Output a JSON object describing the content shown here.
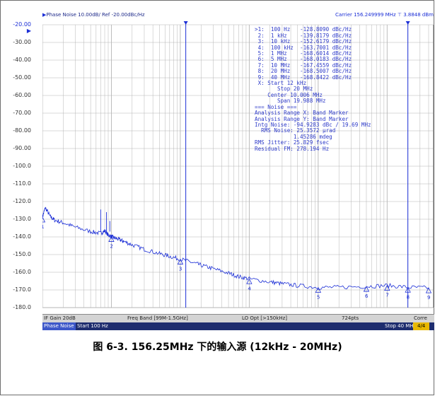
{
  "header": {
    "title": "Phase Noise 10.00dB/ Ref -20.00dBc/Hz",
    "carrier": "Carrier 156.249999 MHz",
    "carrier_level": "3.8848 dBm"
  },
  "y_axis": {
    "labels": [
      "-20.00",
      "-30.00",
      "-40.00",
      "-50.00",
      "-60.00",
      "-70.00",
      "-80.00",
      "-90.00",
      "-100.0",
      "-110.0",
      "-120.0",
      "-130.0",
      "-140.0",
      "-150.0",
      "-160.0",
      "-170.0",
      "-180.0"
    ]
  },
  "markers": {
    "list": [
      ">1:  100 Hz   -128.8090 dBc/Hz",
      " 2:  1 kHz    -139.8179 dBc/Hz",
      " 3:  10 kHz   -152.6179 dBc/Hz",
      " 4:  100 kHz  -163.7001 dBc/Hz",
      " 5:  1 MHz    -168.6014 dBc/Hz",
      " 6:  5 MHz    -168.0183 dBc/Hz",
      " 7:  10 MHz   -167.4559 dBc/Hz",
      " 8:  20 MHz   -168.5007 dBc/Hz",
      " 9:  40 MHz   -168.8422 dBc/Hz"
    ],
    "x_start": " X: Start 12 kHz",
    "x_stop": "       Stop 20 MHz",
    "center": "    Center 10.006 MHz",
    "span": "       Span 19.988 MHz",
    "noise_header": "=== Noise ===",
    "range_x": "Analysis Range X: Band Marker",
    "range_y": "Analysis Range Y: Band Marker",
    "intg_noise": "Intg Noise: -94.9283 dBc / 19.69 MHz",
    "rms_noise": "  RMS Noise: 25.3572 µrad",
    "rms_mdeg": "            1.45286 mdeg",
    "rms_jitter": "RMS Jitter: 25.829 fsec",
    "residual_fm": "Residual FM: 278.194 Hz"
  },
  "status_bar": {
    "if_gain": "IF Gain 20dB",
    "freq_band": "Freq Band [99M-1.5GHz]",
    "lo_opt": "LO Opt [>150kHz]",
    "points": "724pts",
    "corr": "Corre 10"
  },
  "bottom_bar": {
    "mode": "Phase Noise",
    "start": "Start 100 Hz",
    "stop": "Stop 40 MHz",
    "page": "4/4"
  },
  "marker_labels": [
    "1",
    "2",
    "3",
    "4",
    "5",
    "6",
    "7",
    "8",
    "9"
  ],
  "caption": "图 6-3. 156.25MHz 下的输入源 (12kHz - 20MHz)",
  "chart_data": {
    "type": "line",
    "title": "Phase Noise 10.00dB/ Ref -20.00dBc/Hz",
    "xscale": "log",
    "x_range_hz": [
      100,
      40000000
    ],
    "ylim": [
      -180,
      -20
    ],
    "y_unit": "dBc/Hz",
    "grid": true,
    "band_markers_hz": [
      12000,
      20000000
    ],
    "series": [
      {
        "x": [
          100,
          110,
          130,
          150,
          200,
          300,
          500,
          700,
          800,
          900,
          1000,
          1100,
          1300,
          1500,
          2000,
          3000,
          5000,
          7000,
          10000,
          15000,
          20000,
          30000,
          50000,
          70000,
          100000,
          200000,
          300000,
          500000,
          1000000,
          2000000,
          5000000,
          10000000,
          20000000,
          40000000
        ],
        "y": [
          -128.8,
          -123.5,
          -128.5,
          -130.5,
          -132.0,
          -134.5,
          -137.0,
          -138.0,
          -136.5,
          -139.0,
          -139.8,
          -140.5,
          -141.5,
          -142.5,
          -144.5,
          -147.0,
          -149.5,
          -151.0,
          -152.6,
          -154.5,
          -156.0,
          -158.0,
          -160.5,
          -162.5,
          -163.7,
          -165.5,
          -166.5,
          -167.5,
          -168.6,
          -168.5,
          -168.0,
          -167.5,
          -168.5,
          -168.8
        ]
      }
    ],
    "spurs": [
      {
        "x": 700,
        "y": -124.5
      },
      {
        "x": 850,
        "y": -126.0
      },
      {
        "x": 950,
        "y": -131.0
      }
    ],
    "marker_points": [
      {
        "id": "1",
        "x": 100,
        "y": -128.809
      },
      {
        "id": "2",
        "x": 1000,
        "y": -139.8179
      },
      {
        "id": "3",
        "x": 10000,
        "y": -152.6179
      },
      {
        "id": "4",
        "x": 100000,
        "y": -163.7001
      },
      {
        "id": "5",
        "x": 1000000,
        "y": -168.6014
      },
      {
        "id": "6",
        "x": 5000000,
        "y": -168.0183
      },
      {
        "id": "7",
        "x": 10000000,
        "y": -167.4559
      },
      {
        "id": "8",
        "x": 20000000,
        "y": -168.5007
      },
      {
        "id": "9",
        "x": 40000000,
        "y": -168.8422
      }
    ],
    "colors": {
      "trace": "#1b2ed6",
      "grid": "#b4b4b4",
      "background": "#ffffff"
    }
  }
}
